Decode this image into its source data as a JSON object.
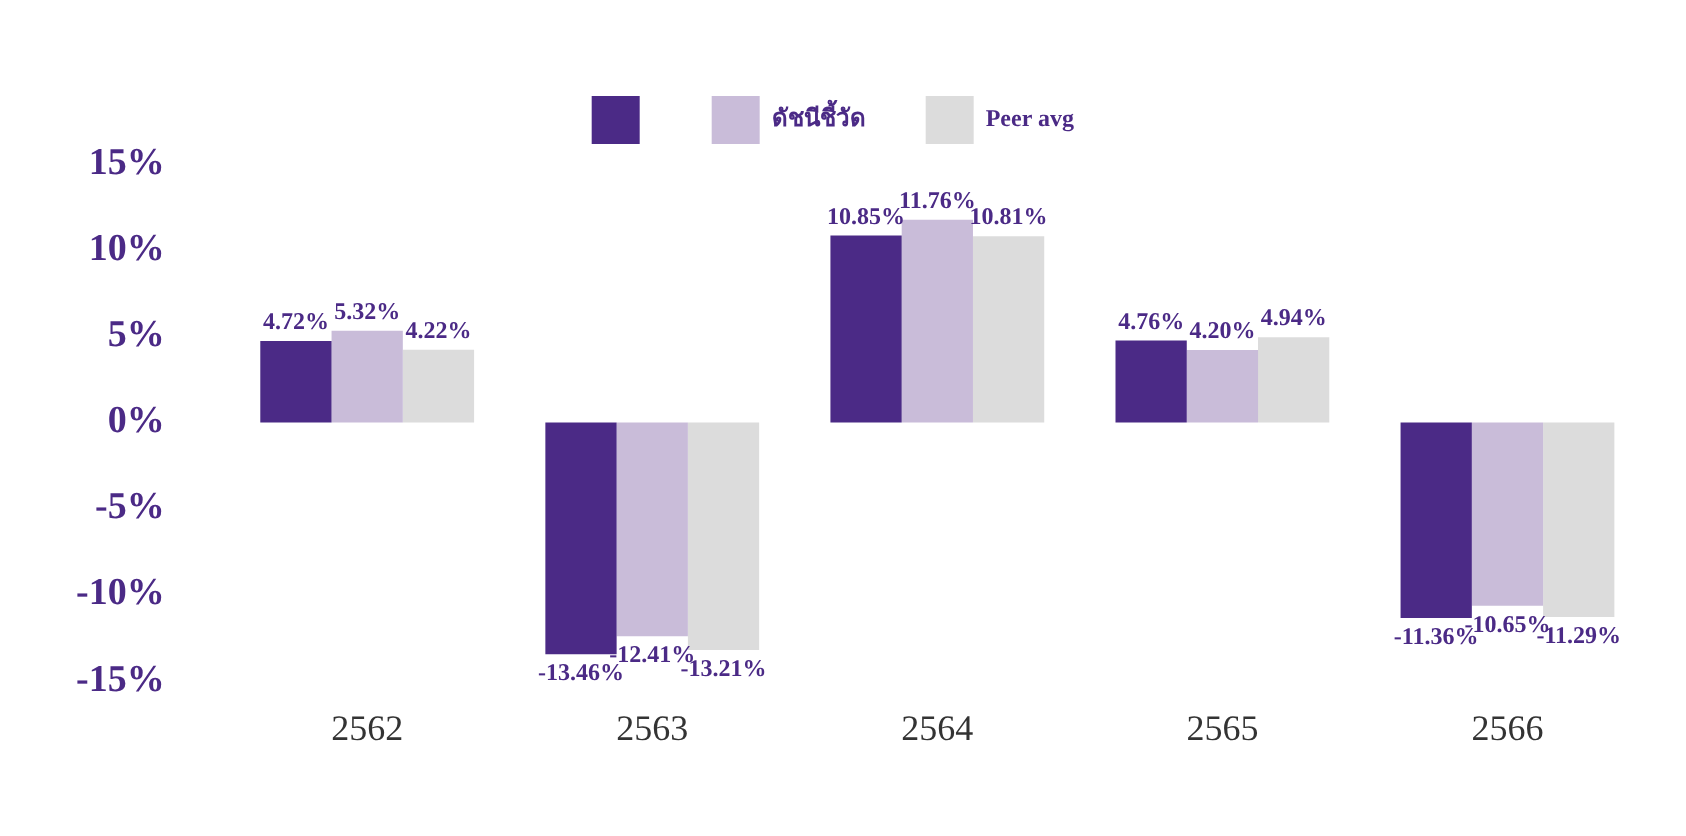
{
  "chart_data": {
    "type": "bar",
    "categories": [
      "2562",
      "2563",
      "2564",
      "2565",
      "2566"
    ],
    "series": [
      {
        "color": "#4b2a86",
        "values": [
          4.72,
          -13.46,
          10.85,
          4.76,
          -11.36
        ],
        "value_labels": [
          "4.72%",
          "-13.46%",
          "10.85%",
          "4.76%",
          "-11.36%"
        ]
      },
      {
        "name": "ดัชนีชี้วัด",
        "color": "#c9bcd9",
        "values": [
          5.32,
          -12.41,
          11.76,
          4.2,
          -10.65
        ],
        "value_labels": [
          "5.32%",
          "-12.41%",
          "11.76%",
          "4.20%",
          "-10.65%"
        ]
      },
      {
        "name": "Peer avg",
        "color": "#dcdcdc",
        "values": [
          4.22,
          -13.21,
          10.81,
          4.94,
          -11.29
        ],
        "value_labels": [
          "4.22%",
          "-13.21%",
          "10.81%",
          "4.94%",
          "-11.29%"
        ]
      }
    ],
    "ylim": [
      -15,
      15
    ],
    "yticks": [
      {
        "value": -15,
        "label": "-15%"
      },
      {
        "value": -10,
        "label": "-10%"
      },
      {
        "value": -5,
        "label": "-5%"
      },
      {
        "value": 0,
        "label": "0%"
      },
      {
        "value": 5,
        "label": "5%"
      },
      {
        "value": 10,
        "label": "10%"
      },
      {
        "value": 15,
        "label": "15%"
      }
    ],
    "grid": false,
    "legend": "top"
  }
}
